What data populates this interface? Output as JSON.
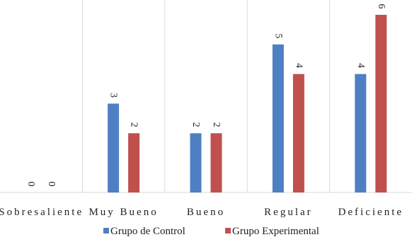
{
  "chart_data": {
    "type": "bar",
    "title": "",
    "xlabel": "",
    "ylabel": "",
    "categories": [
      "Sobresaliente",
      "Muy Bueno",
      "Bueno",
      "Regular",
      "Deficiente"
    ],
    "series": [
      {
        "name": "Grupo de Control",
        "values": [
          0,
          3,
          2,
          5,
          4
        ],
        "color": "#4F7FC3"
      },
      {
        "name": "Grupo Experimental",
        "values": [
          0,
          2,
          2,
          4,
          6
        ],
        "color": "#C0504D"
      }
    ],
    "ylim": [
      0,
      6.5
    ],
    "grid": "vertical-category-separators",
    "legend": "bottom",
    "data_labels": "rotated-above-bars"
  }
}
